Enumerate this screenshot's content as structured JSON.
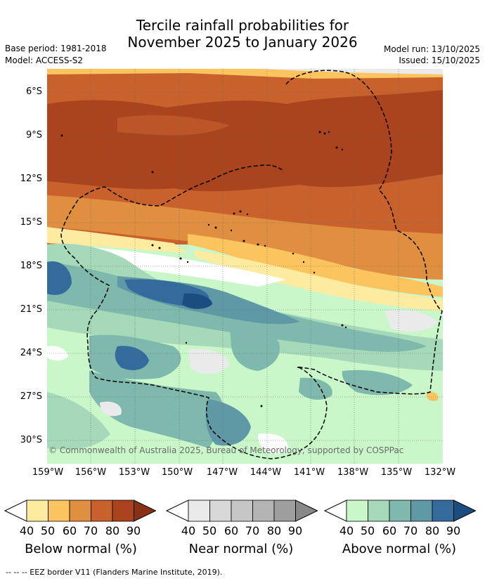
{
  "title_line1": "Tercile rainfall probabilities for",
  "title_line2": "November 2025 to January 2026",
  "base_period": "Base period: 1981-2018",
  "model": "Model: ACCESS-S2",
  "model_run": "Model run: 13/10/2025",
  "issued": "Issued: 15/10/2025",
  "lat_labels": [
    "6°S",
    "9°S",
    "12°S",
    "15°S",
    "18°S",
    "21°S",
    "24°S",
    "27°S",
    "30°S"
  ],
  "lon_labels": [
    "159°W",
    "156°W",
    "153°W",
    "150°W",
    "147°W",
    "144°W",
    "141°W",
    "138°W",
    "135°W",
    "132°W"
  ],
  "copyright": "© Commonwealth of Australia 2025, Bureau of Meteorology, supported by COSPPac",
  "colorbars": [
    {
      "label": "Below normal (%)",
      "ticks": [
        "40",
        "50",
        "60",
        "70",
        "80",
        "90"
      ],
      "colors": [
        "#fdeba0",
        "#fcc45e",
        "#e08e3f",
        "#c9612d",
        "#a9441f",
        "#8a3115"
      ]
    },
    {
      "label": "Near normal (%)",
      "ticks": [
        "40",
        "50",
        "60",
        "70",
        "80",
        "90"
      ],
      "colors": [
        "#eaeaea",
        "#d8d8d8",
        "#c6c6c6",
        "#b4b4b4",
        "#9e9e9e",
        "#888888"
      ]
    },
    {
      "label": "Above normal (%)",
      "ticks": [
        "40",
        "50",
        "60",
        "70",
        "80",
        "90"
      ],
      "colors": [
        "#c9f7c9",
        "#a6d9b9",
        "#7fb8ad",
        "#5f99a6",
        "#336b9c",
        "#1c4d80"
      ]
    }
  ],
  "footer": "--  --  -- EEZ border V11 (Flanders Marine Institute, 2019)."
}
